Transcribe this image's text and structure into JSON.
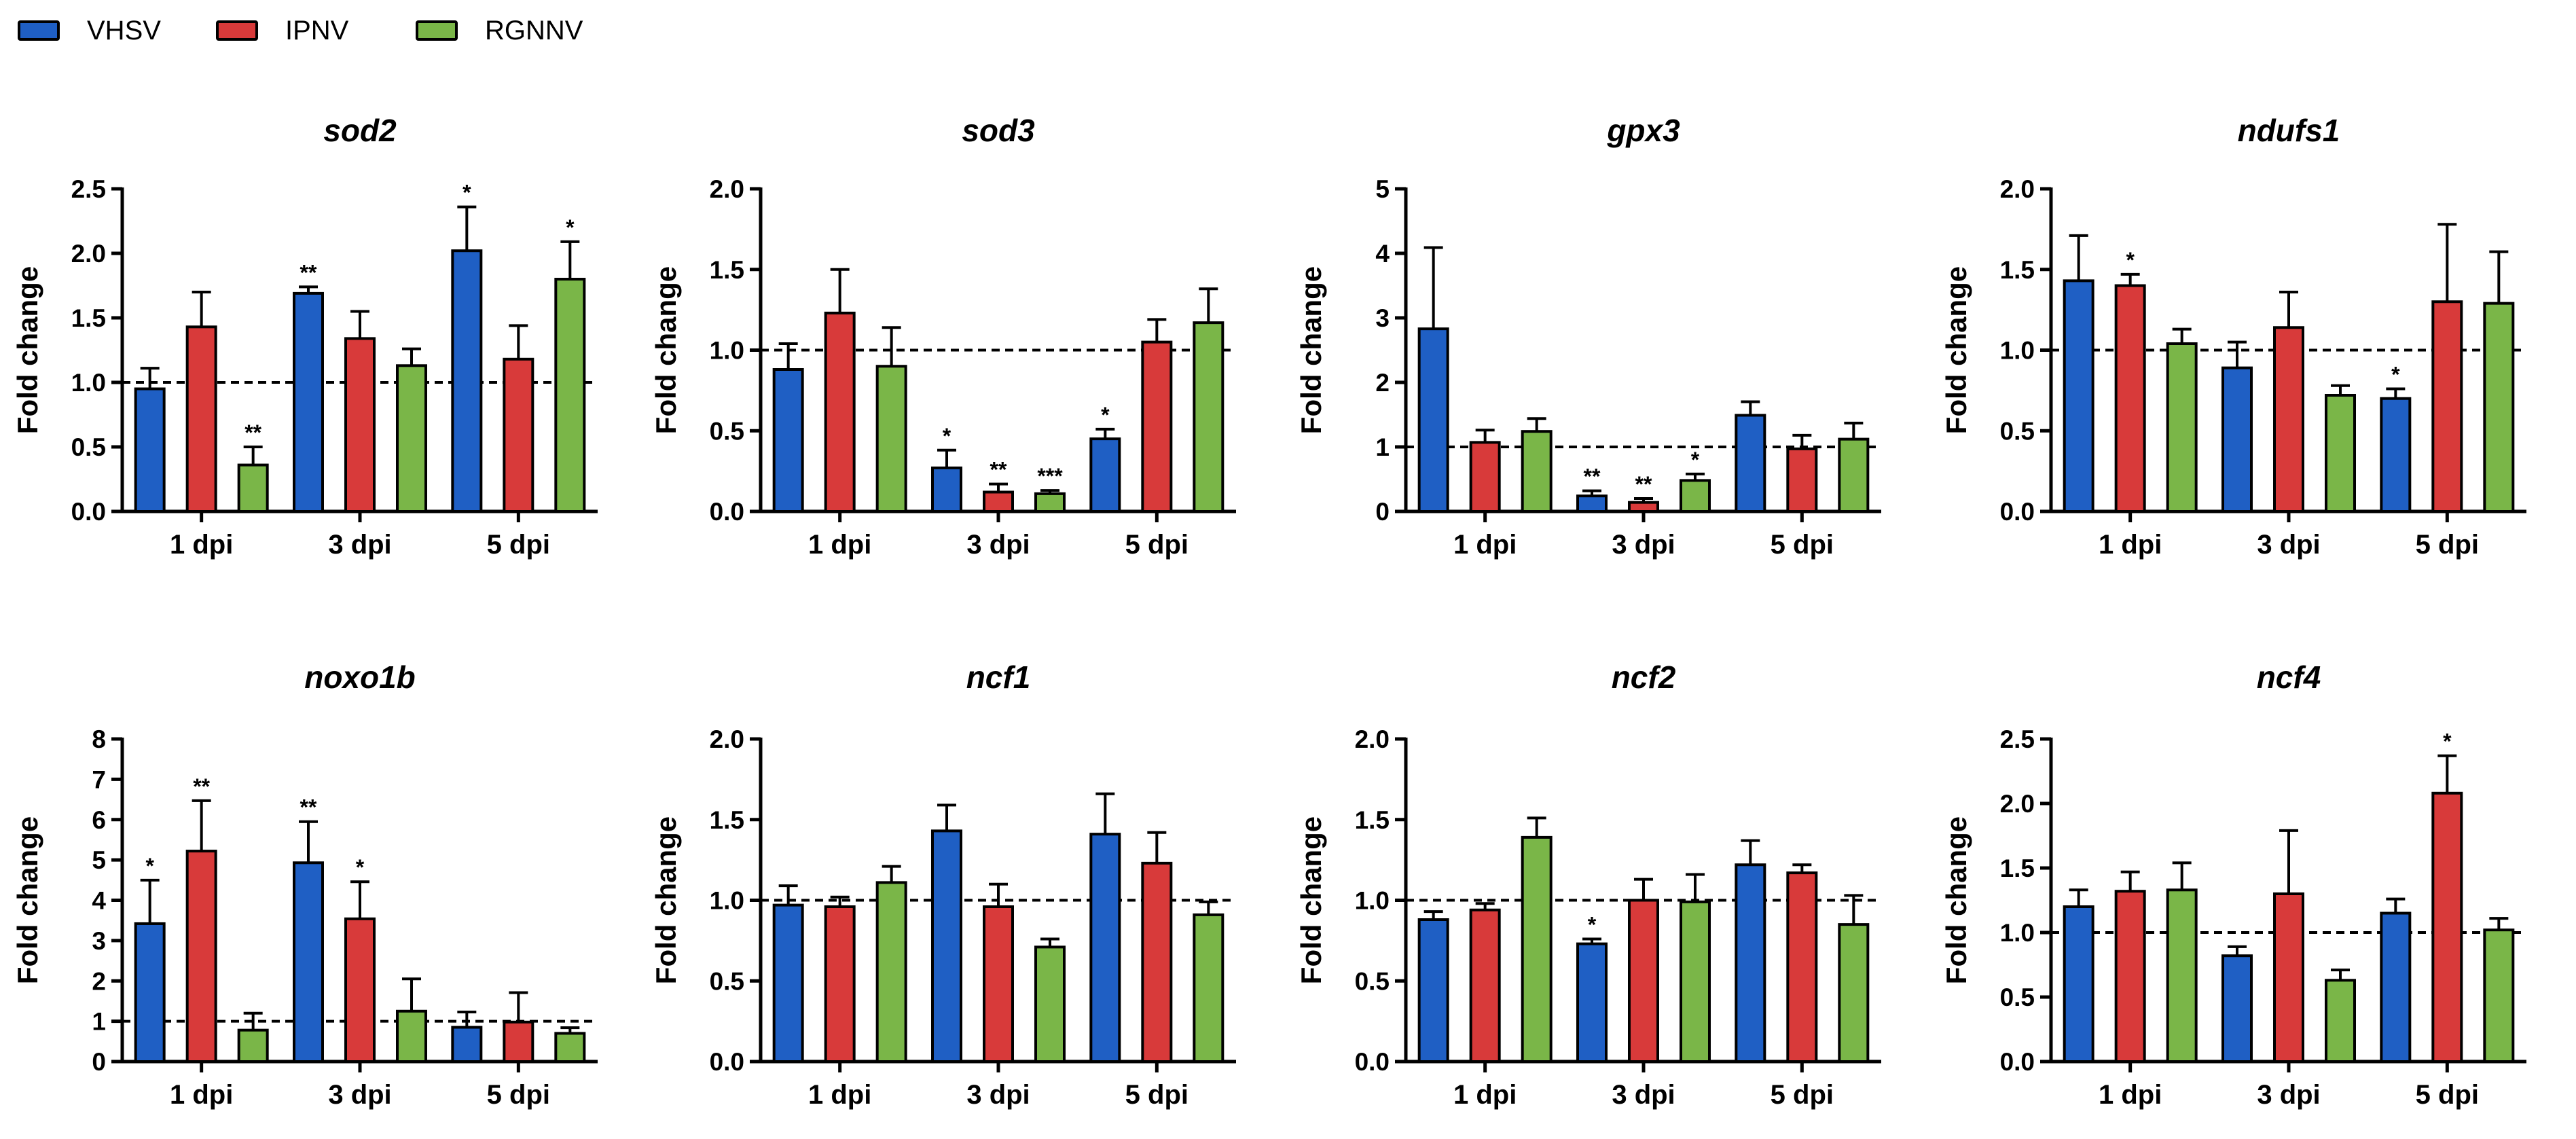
{
  "legend": [
    {
      "name": "VHSV",
      "color": "#1f5fc4"
    },
    {
      "name": "IPNV",
      "color": "#d83a3a"
    },
    {
      "name": "RGNNV",
      "color": "#7ab648"
    }
  ],
  "chart_data": [
    {
      "type": "bar",
      "title": "sod2",
      "ylabel": "Fold change",
      "ylim": [
        0,
        2.5
      ],
      "yticks": [
        "0.0",
        "0.5",
        "1.0",
        "1.5",
        "2.0",
        "2.5"
      ],
      "categories": [
        "1 dpi",
        "3 dpi",
        "5 dpi"
      ],
      "reference_line": 1.0,
      "series": [
        {
          "name": "VHSV",
          "values": [
            0.95,
            1.69,
            2.02
          ],
          "errors": [
            0.16,
            0.05,
            0.34
          ],
          "sig": [
            "",
            "**",
            "*"
          ]
        },
        {
          "name": "IPNV",
          "values": [
            1.43,
            1.34,
            1.18
          ],
          "errors": [
            0.27,
            0.21,
            0.26
          ],
          "sig": [
            "",
            "",
            ""
          ]
        },
        {
          "name": "RGNNV",
          "values": [
            0.36,
            1.13,
            1.8
          ],
          "errors": [
            0.14,
            0.13,
            0.29
          ],
          "sig": [
            "**",
            "",
            "*"
          ]
        }
      ]
    },
    {
      "type": "bar",
      "title": "sod3",
      "ylabel": "Fold change",
      "ylim": [
        0,
        2.0
      ],
      "yticks": [
        "0.0",
        "0.5",
        "1.0",
        "1.5",
        "2.0"
      ],
      "categories": [
        "1 dpi",
        "3 dpi",
        "5 dpi"
      ],
      "reference_line": 1.0,
      "series": [
        {
          "name": "VHSV",
          "values": [
            0.88,
            0.27,
            0.45
          ],
          "errors": [
            0.16,
            0.11,
            0.06
          ],
          "sig": [
            "",
            "*",
            "*"
          ]
        },
        {
          "name": "IPNV",
          "values": [
            1.23,
            0.12,
            1.05
          ],
          "errors": [
            0.27,
            0.05,
            0.14
          ],
          "sig": [
            "",
            "**",
            ""
          ]
        },
        {
          "name": "RGNNV",
          "values": [
            0.9,
            0.11,
            1.17
          ],
          "errors": [
            0.24,
            0.02,
            0.21
          ],
          "sig": [
            "",
            "***",
            ""
          ]
        }
      ]
    },
    {
      "type": "bar",
      "title": "gpx3",
      "ylabel": "Fold change",
      "ylim": [
        0,
        5
      ],
      "yticks": [
        "0",
        "1",
        "2",
        "3",
        "4",
        "5"
      ],
      "categories": [
        "1 dpi",
        "3 dpi",
        "5 dpi"
      ],
      "reference_line": 1.0,
      "series": [
        {
          "name": "VHSV",
          "values": [
            2.83,
            0.24,
            1.49
          ],
          "errors": [
            1.26,
            0.08,
            0.21
          ],
          "sig": [
            "",
            "**",
            ""
          ]
        },
        {
          "name": "IPNV",
          "values": [
            1.07,
            0.14,
            0.97
          ],
          "errors": [
            0.19,
            0.06,
            0.21
          ],
          "sig": [
            "",
            "**",
            ""
          ]
        },
        {
          "name": "RGNNV",
          "values": [
            1.24,
            0.48,
            1.12
          ],
          "errors": [
            0.2,
            0.1,
            0.25
          ],
          "sig": [
            "",
            "*",
            ""
          ]
        }
      ]
    },
    {
      "type": "bar",
      "title": "ndufs1",
      "ylabel": "Fold change",
      "ylim": [
        0,
        2.0
      ],
      "yticks": [
        "0.0",
        "0.5",
        "1.0",
        "1.5",
        "2.0"
      ],
      "categories": [
        "1 dpi",
        "3 dpi",
        "5 dpi"
      ],
      "reference_line": 1.0,
      "series": [
        {
          "name": "VHSV",
          "values": [
            1.43,
            0.89,
            0.7
          ],
          "errors": [
            0.28,
            0.16,
            0.06
          ],
          "sig": [
            "",
            "",
            "*"
          ]
        },
        {
          "name": "IPNV",
          "values": [
            1.4,
            1.14,
            1.3
          ],
          "errors": [
            0.07,
            0.22,
            0.48
          ],
          "sig": [
            "*",
            "",
            ""
          ]
        },
        {
          "name": "RGNNV",
          "values": [
            1.04,
            0.72,
            1.29
          ],
          "errors": [
            0.09,
            0.06,
            0.32
          ],
          "sig": [
            "",
            "",
            ""
          ]
        }
      ]
    },
    {
      "type": "bar",
      "title": "noxo1b",
      "ylabel": "Fold change",
      "ylim": [
        0,
        8
      ],
      "yticks": [
        "0",
        "1",
        "2",
        "3",
        "4",
        "5",
        "6",
        "7",
        "8"
      ],
      "categories": [
        "1 dpi",
        "3 dpi",
        "5 dpi"
      ],
      "reference_line": 1.0,
      "series": [
        {
          "name": "VHSV",
          "values": [
            3.42,
            4.93,
            0.85
          ],
          "errors": [
            1.08,
            1.02,
            0.38
          ],
          "sig": [
            "*",
            "**",
            ""
          ]
        },
        {
          "name": "IPNV",
          "values": [
            5.22,
            3.54,
            0.98
          ],
          "errors": [
            1.25,
            0.92,
            0.73
          ],
          "sig": [
            "**",
            "*",
            ""
          ]
        },
        {
          "name": "RGNNV",
          "values": [
            0.78,
            1.25,
            0.7
          ],
          "errors": [
            0.42,
            0.8,
            0.14
          ],
          "sig": [
            "",
            "",
            ""
          ]
        }
      ]
    },
    {
      "type": "bar",
      "title": "ncf1",
      "ylabel": "Fold change",
      "ylim": [
        0,
        2.0
      ],
      "yticks": [
        "0.0",
        "0.5",
        "1.0",
        "1.5",
        "2.0"
      ],
      "categories": [
        "1 dpi",
        "3 dpi",
        "5 dpi"
      ],
      "reference_line": 1.0,
      "series": [
        {
          "name": "VHSV",
          "values": [
            0.97,
            1.43,
            1.41
          ],
          "errors": [
            0.12,
            0.16,
            0.25
          ],
          "sig": [
            "",
            "",
            ""
          ]
        },
        {
          "name": "IPNV",
          "values": [
            0.96,
            0.96,
            1.23
          ],
          "errors": [
            0.06,
            0.14,
            0.19
          ],
          "sig": [
            "",
            "",
            ""
          ]
        },
        {
          "name": "RGNNV",
          "values": [
            1.11,
            0.71,
            0.91
          ],
          "errors": [
            0.1,
            0.05,
            0.08
          ],
          "sig": [
            "",
            "",
            ""
          ]
        }
      ]
    },
    {
      "type": "bar",
      "title": "ncf2",
      "ylabel": "Fold change",
      "ylim": [
        0,
        2.0
      ],
      "yticks": [
        "0.0",
        "0.5",
        "1.0",
        "1.5",
        "2.0"
      ],
      "categories": [
        "1 dpi",
        "3 dpi",
        "5 dpi"
      ],
      "reference_line": 1.0,
      "series": [
        {
          "name": "VHSV",
          "values": [
            0.88,
            0.73,
            1.22
          ],
          "errors": [
            0.05,
            0.03,
            0.15
          ],
          "sig": [
            "",
            "*",
            ""
          ]
        },
        {
          "name": "IPNV",
          "values": [
            0.94,
            1.0,
            1.17
          ],
          "errors": [
            0.04,
            0.13,
            0.05
          ],
          "sig": [
            "",
            "",
            ""
          ]
        },
        {
          "name": "RGNNV",
          "values": [
            1.39,
            0.99,
            0.85
          ],
          "errors": [
            0.12,
            0.17,
            0.18
          ],
          "sig": [
            "",
            "",
            ""
          ]
        }
      ]
    },
    {
      "type": "bar",
      "title": "ncf4",
      "ylabel": "Fold change",
      "ylim": [
        0,
        2.5
      ],
      "yticks": [
        "0.0",
        "0.5",
        "1.0",
        "1.5",
        "2.0",
        "2.5"
      ],
      "categories": [
        "1 dpi",
        "3 dpi",
        "5 dpi"
      ],
      "reference_line": 1.0,
      "series": [
        {
          "name": "VHSV",
          "values": [
            1.2,
            0.82,
            1.15
          ],
          "errors": [
            0.13,
            0.07,
            0.11
          ],
          "sig": [
            "",
            "",
            ""
          ]
        },
        {
          "name": "IPNV",
          "values": [
            1.32,
            1.3,
            2.08
          ],
          "errors": [
            0.15,
            0.49,
            0.29
          ],
          "sig": [
            "",
            "",
            "*"
          ]
        },
        {
          "name": "RGNNV",
          "values": [
            1.33,
            0.63,
            1.02
          ],
          "errors": [
            0.21,
            0.08,
            0.09
          ],
          "sig": [
            "",
            "",
            ""
          ]
        }
      ]
    }
  ]
}
